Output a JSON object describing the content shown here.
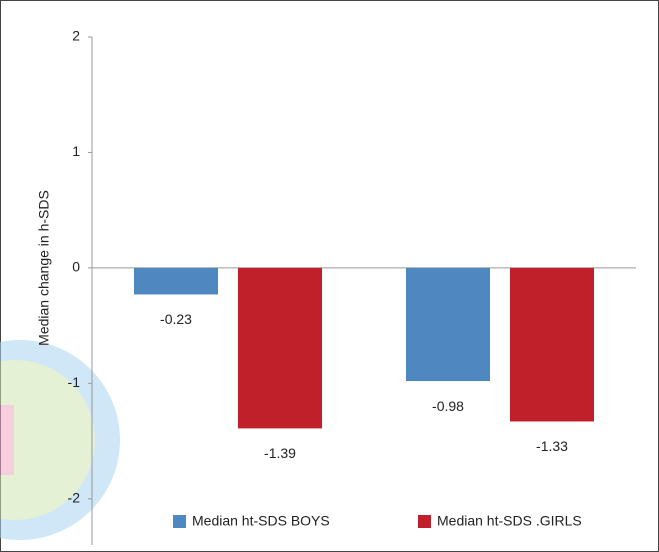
{
  "chart_data": {
    "type": "bar",
    "y_label": "Median change in h-SDS",
    "categories": [
      null,
      null
    ],
    "series": [
      {
        "name": "Median ht-SDS BOYS",
        "color": "#4f88c0",
        "values": [
          -0.23,
          -0.98
        ]
      },
      {
        "name": "Median ht-SDS .GIRLS",
        "color": "#c0202a",
        "values": [
          -1.39,
          -1.33
        ]
      }
    ],
    "ylim": [
      -2.4,
      2
    ],
    "yticks": [
      -2,
      -1,
      0,
      1,
      2
    ],
    "legend": "bottom"
  }
}
